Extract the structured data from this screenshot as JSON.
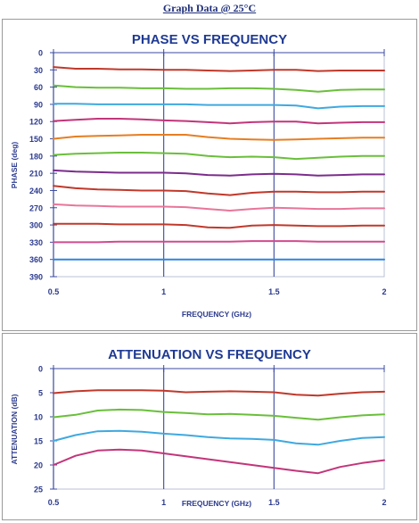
{
  "header": {
    "title": "Graph Data @ 25°C"
  },
  "chart_data": [
    {
      "type": "line",
      "title": "PHASE VS FREQUENCY",
      "xlabel": "FREQUENCY (GHz)",
      "ylabel": "PHASE (deg)",
      "xlim": [
        0.5,
        2
      ],
      "ylim": [
        0,
        390
      ],
      "y_inverted": true,
      "x_ticks": [
        "0.5",
        "1",
        "1.5",
        "2"
      ],
      "y_ticks": [
        "0",
        "30",
        "60",
        "90",
        "120",
        "150",
        "180",
        "210",
        "240",
        "270",
        "300",
        "330",
        "360",
        "390"
      ],
      "grid": "vertical major lines at 1 and 1.5",
      "x": [
        0.5,
        0.6,
        0.7,
        0.8,
        0.9,
        1.0,
        1.1,
        1.2,
        1.3,
        1.4,
        1.5,
        1.6,
        1.7,
        1.8,
        1.9,
        2.0
      ],
      "series": [
        {
          "color": "#c0392b",
          "values": [
            25,
            28,
            28,
            29,
            29,
            30,
            30,
            31,
            32,
            31,
            30,
            30,
            32,
            31,
            31,
            31
          ]
        },
        {
          "color": "#6abf3b",
          "values": [
            57,
            60,
            61,
            61,
            62,
            62,
            63,
            63,
            62,
            62,
            63,
            65,
            68,
            65,
            64,
            64
          ]
        },
        {
          "color": "#3fa9e0",
          "values": [
            89,
            89,
            90,
            90,
            90,
            90,
            90,
            91,
            91,
            91,
            91,
            92,
            97,
            94,
            93,
            93
          ]
        },
        {
          "color": "#c2357a",
          "values": [
            119,
            117,
            115,
            115,
            116,
            118,
            119,
            121,
            123,
            121,
            120,
            120,
            123,
            122,
            121,
            121
          ]
        },
        {
          "color": "#e67e22",
          "values": [
            150,
            146,
            145,
            144,
            143,
            143,
            143,
            147,
            150,
            151,
            152,
            151,
            150,
            149,
            148,
            148
          ]
        },
        {
          "color": "#6abf3b",
          "values": [
            178,
            176,
            175,
            174,
            174,
            175,
            176,
            180,
            182,
            181,
            182,
            185,
            183,
            181,
            180,
            180
          ]
        },
        {
          "color": "#7b2d8b",
          "values": [
            205,
            207,
            208,
            209,
            209,
            209,
            210,
            213,
            214,
            212,
            211,
            212,
            214,
            213,
            212,
            212
          ]
        },
        {
          "color": "#c0392b",
          "values": [
            232,
            236,
            238,
            239,
            240,
            240,
            241,
            245,
            248,
            244,
            242,
            242,
            243,
            243,
            242,
            242
          ]
        },
        {
          "color": "#e8769a",
          "values": [
            264,
            266,
            267,
            268,
            268,
            268,
            269,
            272,
            275,
            272,
            270,
            271,
            272,
            272,
            271,
            271
          ]
        },
        {
          "color": "#c0392b",
          "values": [
            298,
            298,
            298,
            299,
            299,
            299,
            300,
            304,
            305,
            301,
            300,
            301,
            302,
            302,
            301,
            301
          ]
        },
        {
          "color": "#d24a8e",
          "values": [
            330,
            330,
            330,
            329,
            329,
            329,
            329,
            329,
            329,
            328,
            328,
            328,
            329,
            329,
            329,
            329
          ]
        },
        {
          "color": "#2e86de",
          "values": [
            360,
            360,
            360,
            360,
            360,
            360,
            360,
            360,
            360,
            360,
            360,
            360,
            360,
            360,
            360,
            360
          ]
        }
      ]
    },
    {
      "type": "line",
      "title": "ATTENUATION VS FREQUENCY",
      "xlabel": "FREQUENCY (GHz)",
      "ylabel": "ATTENUATION (dB)",
      "xlim": [
        0.5,
        2
      ],
      "ylim": [
        0,
        25
      ],
      "y_inverted": true,
      "x_ticks": [
        "0.5",
        "1",
        "1.5",
        "2"
      ],
      "y_ticks": [
        "0",
        "5",
        "10",
        "15",
        "20",
        "25"
      ],
      "grid": "vertical major lines at 1 and 1.5",
      "x": [
        0.5,
        0.6,
        0.7,
        0.8,
        0.9,
        1.0,
        1.1,
        1.2,
        1.3,
        1.4,
        1.5,
        1.6,
        1.7,
        1.8,
        1.9,
        2.0
      ],
      "series": [
        {
          "color": "#c0392b",
          "values": [
            5.1,
            4.7,
            4.5,
            4.5,
            4.5,
            4.6,
            4.9,
            4.8,
            4.7,
            4.8,
            4.9,
            5.4,
            5.6,
            5.2,
            4.9,
            4.8
          ]
        },
        {
          "color": "#6abf3b",
          "values": [
            10.1,
            9.6,
            8.7,
            8.5,
            8.6,
            9.0,
            9.2,
            9.5,
            9.4,
            9.6,
            9.8,
            10.2,
            10.6,
            10.1,
            9.7,
            9.5
          ]
        },
        {
          "color": "#3fa9e0",
          "values": [
            15.0,
            13.8,
            13.0,
            12.9,
            13.1,
            13.5,
            13.8,
            14.2,
            14.5,
            14.6,
            14.8,
            15.5,
            15.8,
            15.0,
            14.4,
            14.2
          ]
        },
        {
          "color": "#c2357a",
          "values": [
            20.0,
            18.1,
            17.0,
            16.8,
            17.0,
            17.6,
            18.2,
            18.8,
            19.4,
            20.0,
            20.6,
            21.2,
            21.7,
            20.4,
            19.6,
            19.0
          ]
        }
      ]
    }
  ]
}
